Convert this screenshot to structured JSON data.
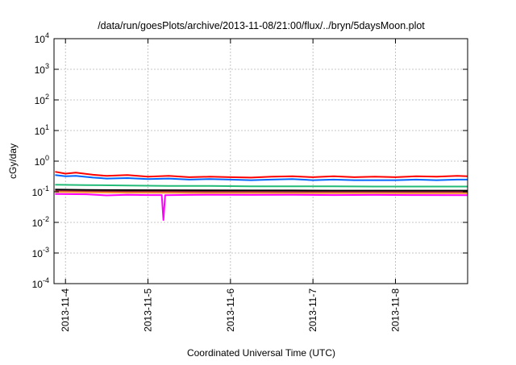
{
  "chart_data": {
    "type": "line",
    "title": "/data/run/goesPlots/archive/2013-11-08/21:00/flux/../bryn/5daysMoon.plot",
    "xlabel": "Coordinated Universal Time (UTC)",
    "ylabel": "cGy/day",
    "y_scale": "log",
    "ylim": [
      0.0001,
      10000
    ],
    "xlim": [
      "2013-11-03 20:40",
      "2013-11-08 21:00"
    ],
    "grid": true,
    "x_ticks": [
      "2013-11-4",
      "2013-11-5",
      "2013-11-6",
      "2013-11-7",
      "2013-11-8"
    ],
    "y_ticks": [
      {
        "value": 0.0001,
        "base": "10",
        "exp": "-4"
      },
      {
        "value": 0.001,
        "base": "10",
        "exp": "-3"
      },
      {
        "value": 0.01,
        "base": "10",
        "exp": "-2"
      },
      {
        "value": 0.1,
        "base": "10",
        "exp": "-1"
      },
      {
        "value": 1,
        "base": "10",
        "exp": "0"
      },
      {
        "value": 10,
        "base": "10",
        "exp": "1"
      },
      {
        "value": 100,
        "base": "10",
        "exp": "2"
      },
      {
        "value": 1000,
        "base": "10",
        "exp": "3"
      },
      {
        "value": 10000,
        "base": "10",
        "exp": "4"
      }
    ],
    "series": [
      {
        "color": "#ff0000",
        "values": [
          [
            "2013-11-03 21:00",
            0.45
          ],
          [
            "2013-11-04 00:00",
            0.39
          ],
          [
            "2013-11-04 03:00",
            0.42
          ],
          [
            "2013-11-04 08:00",
            0.36
          ],
          [
            "2013-11-04 12:00",
            0.33
          ],
          [
            "2013-11-04 18:00",
            0.35
          ],
          [
            "2013-11-05 00:00",
            0.31
          ],
          [
            "2013-11-05 06:00",
            0.33
          ],
          [
            "2013-11-05 12:00",
            0.3
          ],
          [
            "2013-11-05 18:00",
            0.31
          ],
          [
            "2013-11-06 00:00",
            0.3
          ],
          [
            "2013-11-06 06:00",
            0.29
          ],
          [
            "2013-11-06 12:00",
            0.31
          ],
          [
            "2013-11-06 18:00",
            0.32
          ],
          [
            "2013-11-07 00:00",
            0.3
          ],
          [
            "2013-11-07 06:00",
            0.32
          ],
          [
            "2013-11-07 12:00",
            0.3
          ],
          [
            "2013-11-07 18:00",
            0.31
          ],
          [
            "2013-11-08 00:00",
            0.3
          ],
          [
            "2013-11-08 06:00",
            0.32
          ],
          [
            "2013-11-08 12:00",
            0.31
          ],
          [
            "2013-11-08 18:00",
            0.33
          ],
          [
            "2013-11-08 21:00",
            0.32
          ]
        ]
      },
      {
        "color": "#0066ff",
        "values": [
          [
            "2013-11-03 21:00",
            0.35
          ],
          [
            "2013-11-04 00:00",
            0.32
          ],
          [
            "2013-11-04 03:00",
            0.33
          ],
          [
            "2013-11-04 08:00",
            0.29
          ],
          [
            "2013-11-04 12:00",
            0.27
          ],
          [
            "2013-11-04 18:00",
            0.28
          ],
          [
            "2013-11-05 00:00",
            0.26
          ],
          [
            "2013-11-05 06:00",
            0.27
          ],
          [
            "2013-11-05 12:00",
            0.25
          ],
          [
            "2013-11-05 18:00",
            0.26
          ],
          [
            "2013-11-06 00:00",
            0.25
          ],
          [
            "2013-11-06 06:00",
            0.24
          ],
          [
            "2013-11-06 12:00",
            0.25
          ],
          [
            "2013-11-06 18:00",
            0.26
          ],
          [
            "2013-11-07 00:00",
            0.24
          ],
          [
            "2013-11-07 06:00",
            0.25
          ],
          [
            "2013-11-07 12:00",
            0.24
          ],
          [
            "2013-11-07 18:00",
            0.24
          ],
          [
            "2013-11-08 00:00",
            0.24
          ],
          [
            "2013-11-08 06:00",
            0.25
          ],
          [
            "2013-11-08 12:00",
            0.24
          ],
          [
            "2013-11-08 18:00",
            0.25
          ],
          [
            "2013-11-08 21:00",
            0.25
          ]
        ]
      },
      {
        "color": "#22bb77",
        "values": [
          [
            "2013-11-03 21:00",
            0.17
          ],
          [
            "2013-11-04 06:00",
            0.165
          ],
          [
            "2013-11-04 18:00",
            0.16
          ],
          [
            "2013-11-05 06:00",
            0.155
          ],
          [
            "2013-11-05 18:00",
            0.155
          ],
          [
            "2013-11-06 06:00",
            0.15
          ],
          [
            "2013-11-06 18:00",
            0.15
          ],
          [
            "2013-11-07 06:00",
            0.15
          ],
          [
            "2013-11-07 18:00",
            0.148
          ],
          [
            "2013-11-08 06:00",
            0.148
          ],
          [
            "2013-11-08 21:00",
            0.148
          ]
        ]
      },
      {
        "color": "#000000",
        "values": [
          [
            "2013-11-03 21:00",
            0.118
          ],
          [
            "2013-11-04 06:00",
            0.115
          ],
          [
            "2013-11-04 18:00",
            0.113
          ],
          [
            "2013-11-05 06:00",
            0.112
          ],
          [
            "2013-11-05 18:00",
            0.111
          ],
          [
            "2013-11-06 06:00",
            0.11
          ],
          [
            "2013-11-06 18:00",
            0.11
          ],
          [
            "2013-11-07 06:00",
            0.109
          ],
          [
            "2013-11-07 18:00",
            0.109
          ],
          [
            "2013-11-08 06:00",
            0.109
          ],
          [
            "2013-11-08 21:00",
            0.109
          ]
        ]
      },
      {
        "color": "#8b1a3a",
        "values": [
          [
            "2013-11-03 21:00",
            0.107
          ],
          [
            "2013-11-04 06:00",
            0.104
          ],
          [
            "2013-11-04 18:00",
            0.102
          ],
          [
            "2013-11-05 06:00",
            0.101
          ],
          [
            "2013-11-05 18:00",
            0.1
          ],
          [
            "2013-11-06 06:00",
            0.1
          ],
          [
            "2013-11-06 18:00",
            0.099
          ],
          [
            "2013-11-07 06:00",
            0.099
          ],
          [
            "2013-11-07 18:00",
            0.098
          ],
          [
            "2013-11-08 06:00",
            0.098
          ],
          [
            "2013-11-08 21:00",
            0.098
          ]
        ]
      },
      {
        "color": "#ff9933",
        "values": [
          [
            "2013-11-03 21:00",
            0.098
          ],
          [
            "2013-11-04 06:00",
            0.095
          ],
          [
            "2013-11-04 18:00",
            0.093
          ],
          [
            "2013-11-05 06:00",
            0.092
          ],
          [
            "2013-11-05 18:00",
            0.091
          ],
          [
            "2013-11-06 06:00",
            0.091
          ],
          [
            "2013-11-06 18:00",
            0.09
          ],
          [
            "2013-11-07 06:00",
            0.09
          ],
          [
            "2013-11-07 18:00",
            0.09
          ],
          [
            "2013-11-08 06:00",
            0.089
          ],
          [
            "2013-11-08 21:00",
            0.089
          ]
        ]
      },
      {
        "color": "#ff00ff",
        "values": [
          [
            "2013-11-03 21:00",
            0.085
          ],
          [
            "2013-11-04 06:00",
            0.083
          ],
          [
            "2013-11-04 12:00",
            0.076
          ],
          [
            "2013-11-04 18:00",
            0.08
          ],
          [
            "2013-11-05 00:00",
            0.078
          ],
          [
            "2013-11-05 04:00",
            0.078
          ],
          [
            "2013-11-05 04:30",
            0.012
          ],
          [
            "2013-11-05 05:00",
            0.077
          ],
          [
            "2013-11-05 12:00",
            0.079
          ],
          [
            "2013-11-05 18:00",
            0.08
          ],
          [
            "2013-11-06 06:00",
            0.079
          ],
          [
            "2013-11-06 18:00",
            0.08
          ],
          [
            "2013-11-07 06:00",
            0.078
          ],
          [
            "2013-11-07 18:00",
            0.079
          ],
          [
            "2013-11-08 06:00",
            0.078
          ],
          [
            "2013-11-08 21:00",
            0.077
          ]
        ]
      }
    ]
  }
}
